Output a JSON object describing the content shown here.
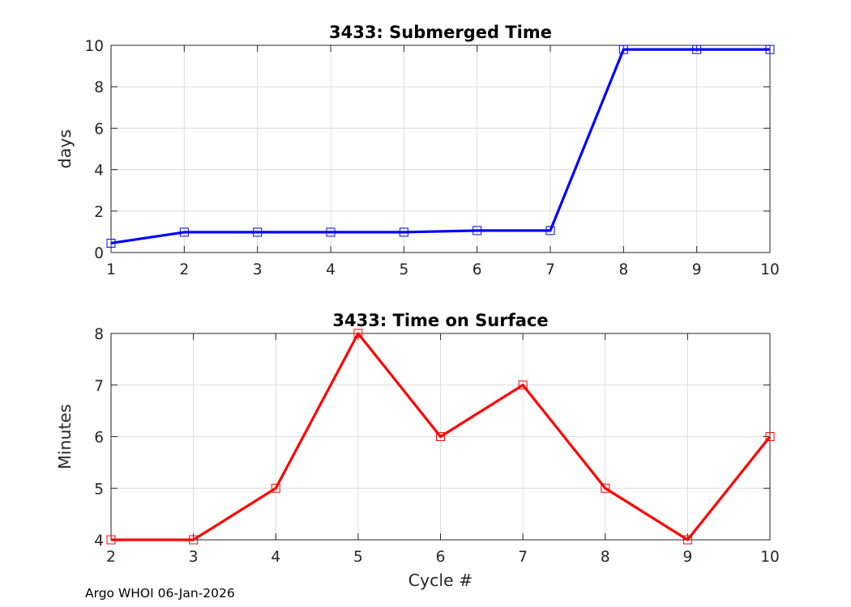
{
  "chart_data": [
    {
      "type": "line",
      "title": "3433: Submerged Time",
      "xlabel": "",
      "ylabel": "days",
      "xlim": [
        1,
        10
      ],
      "ylim": [
        0,
        10
      ],
      "xticks": [
        1,
        2,
        3,
        4,
        5,
        6,
        7,
        8,
        9,
        10
      ],
      "yticks": [
        0,
        2,
        4,
        6,
        8,
        10
      ],
      "grid": true,
      "marker": "square",
      "series": [
        {
          "color": "#0000ff",
          "x": [
            1,
            2,
            3,
            4,
            5,
            6,
            7,
            8,
            9,
            10
          ],
          "y": [
            0.45,
            0.98,
            0.98,
            0.98,
            0.98,
            1.06,
            1.06,
            9.8,
            9.8,
            9.8
          ]
        }
      ]
    },
    {
      "type": "line",
      "title": "3433: Time on Surface",
      "xlabel": "Cycle #",
      "ylabel": "Minutes",
      "xlim": [
        2,
        10
      ],
      "ylim": [
        4,
        8
      ],
      "xticks": [
        2,
        3,
        4,
        5,
        6,
        7,
        8,
        9,
        10
      ],
      "yticks": [
        4,
        5,
        6,
        7,
        8
      ],
      "grid": true,
      "marker": "square",
      "series": [
        {
          "color": "#ff0000",
          "x": [
            2,
            3,
            4,
            5,
            6,
            7,
            8,
            9,
            10
          ],
          "y": [
            4,
            4,
            5,
            8,
            6,
            7,
            5,
            4,
            6
          ]
        }
      ]
    }
  ],
  "footer": "Argo WHOI 06-Jan-2026"
}
